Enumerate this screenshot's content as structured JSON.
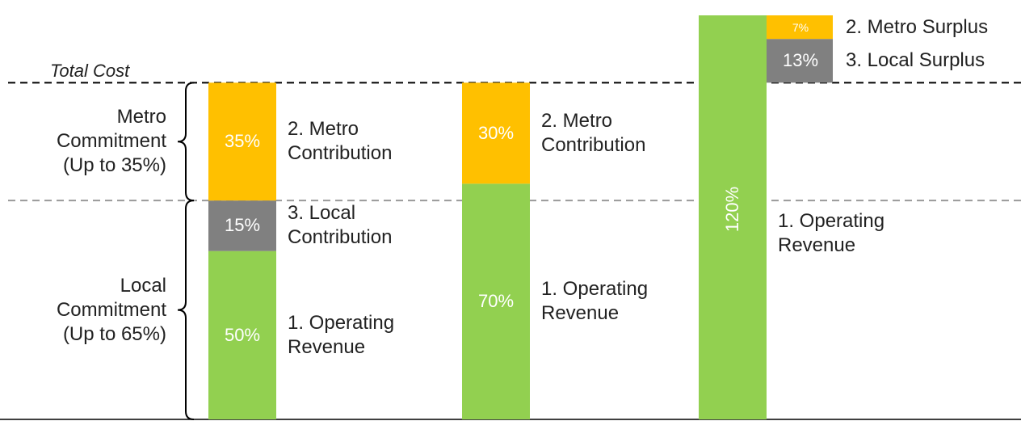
{
  "chart_data": {
    "type": "stacked_bar",
    "ylim": [
      0,
      120
    ],
    "reference_lines": [
      {
        "label": "Total Cost",
        "value": 100,
        "color": "#000000"
      },
      {
        "value": 65,
        "color": "#999999"
      }
    ],
    "brackets": [
      {
        "label": "Metro Commitment (Up to 35%)",
        "from": 65,
        "to": 100
      },
      {
        "label": "Local Commitment (Up to 65%)",
        "from": 0,
        "to": 65
      }
    ],
    "columns": [
      {
        "segments": [
          {
            "name": "1. Operating Revenue",
            "value": 50,
            "value_label": "50%",
            "color": "#92d050"
          },
          {
            "name": "3. Local Contribution",
            "value": 15,
            "value_label": "15%",
            "color": "#808080"
          },
          {
            "name": "2. Metro Contribution",
            "value": 35,
            "value_label": "35%",
            "color": "#ffc000"
          }
        ]
      },
      {
        "segments": [
          {
            "name": "1. Operating Revenue",
            "value": 70,
            "value_label": "70%",
            "color": "#92d050"
          },
          {
            "name": "2. Metro Contribution",
            "value": 30,
            "value_label": "30%",
            "color": "#ffc000"
          }
        ]
      },
      {
        "segments": [
          {
            "name": "1. Operating Revenue",
            "value": 120,
            "value_label": "120%",
            "color": "#92d050",
            "rotated": true
          }
        ],
        "surplus": [
          {
            "name": "3. Local Surplus",
            "value": 13,
            "value_label": "13%",
            "color": "#808080"
          },
          {
            "name": "2. Metro Surplus",
            "value": 7,
            "value_label": "7%",
            "color": "#ffc000"
          }
        ]
      }
    ]
  }
}
